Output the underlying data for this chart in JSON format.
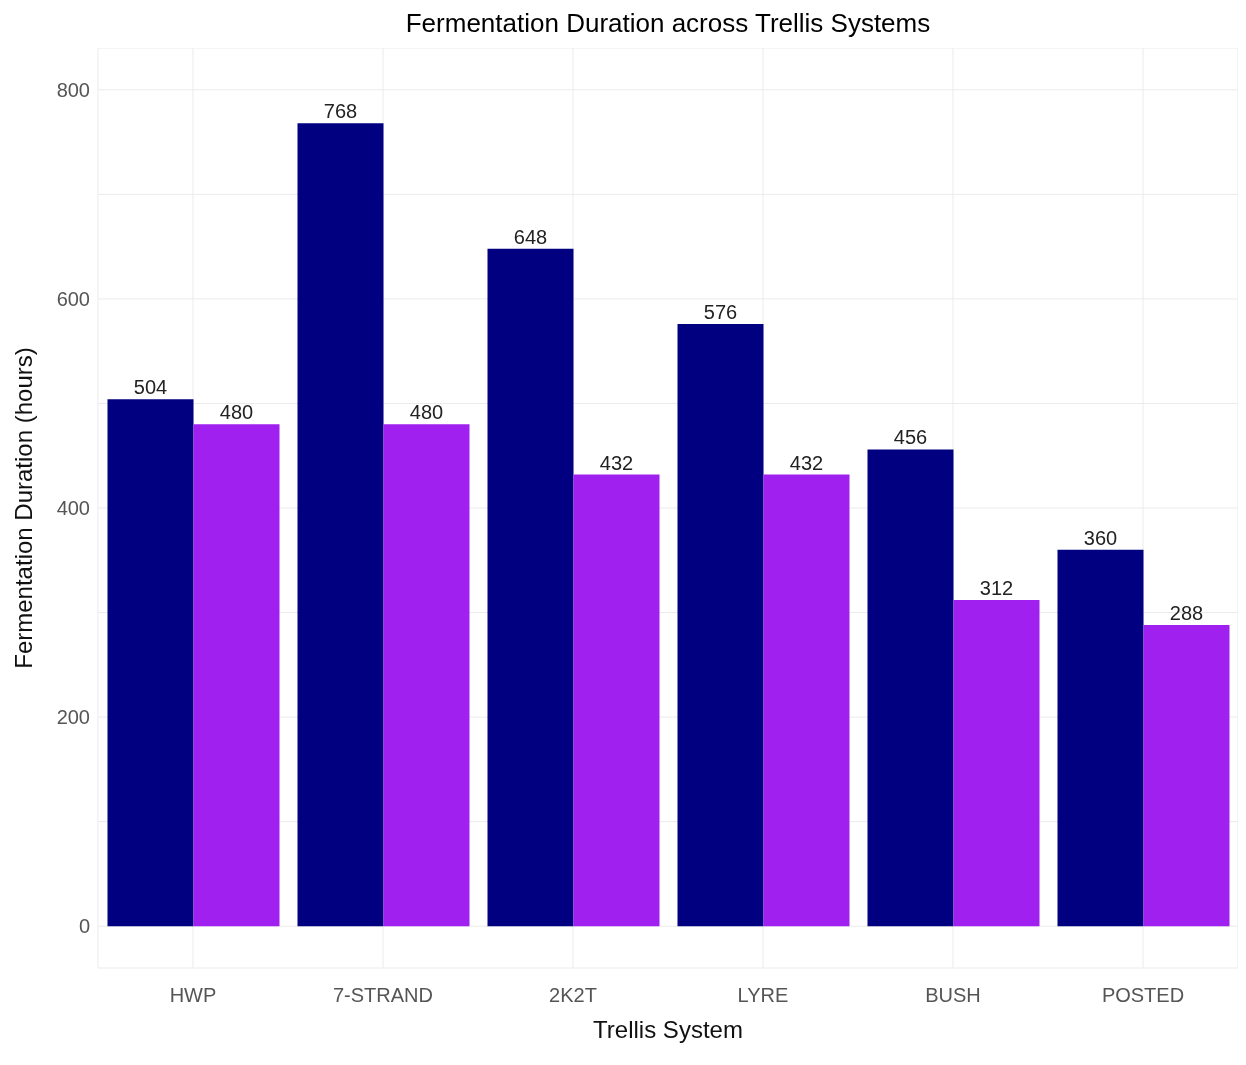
{
  "chart_data": {
    "type": "bar",
    "title": "Fermentation Duration across Trellis Systems",
    "xlabel": "Trellis System",
    "ylabel": "Fermentation Duration (hours)",
    "categories": [
      "HWP",
      "7-STRAND",
      "2K2T",
      "LYRE",
      "BUSH",
      "POSTED"
    ],
    "series": [
      {
        "color": "#000080",
        "values": [
          504,
          768,
          648,
          576,
          456,
          360
        ]
      },
      {
        "color": "#a020f0",
        "values": [
          480,
          480,
          432,
          432,
          312,
          288
        ]
      }
    ],
    "ylim": [
      -40,
      840
    ],
    "yticks": [
      0,
      {
        "value": 100,
        "label": null
      },
      200,
      {
        "value": 300,
        "label": null
      },
      400,
      {
        "value": 500,
        "label": null
      },
      600,
      {
        "value": 700,
        "label": null
      },
      800
    ],
    "grid": true,
    "data_labels": true
  }
}
